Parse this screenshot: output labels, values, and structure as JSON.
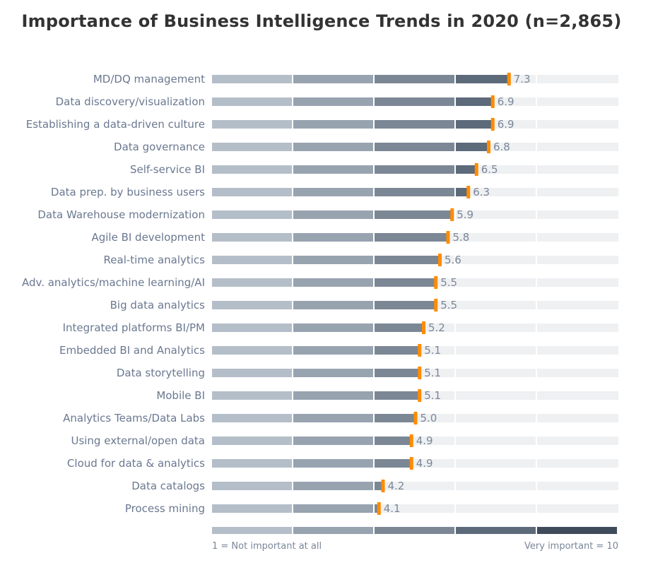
{
  "chart_data": {
    "type": "bar",
    "orientation": "horizontal",
    "title": "Importance of Business Intelligence Trends in 2020 (n=2,865)",
    "categories": [
      "MD/DQ management",
      "Data discovery/visualization",
      "Establishing a data-driven culture",
      "Data governance",
      "Self-service BI",
      "Data prep. by business users",
      "Data Warehouse modernization",
      "Agile BI development",
      "Real-time analytics",
      "Adv. analytics/machine learning/AI",
      "Big data analytics",
      "Integrated platforms BI/PM",
      "Embedded BI and Analytics",
      "Data storytelling",
      "Mobile BI",
      "Analytics Teams/Data Labs",
      "Using external/open data",
      "Cloud for data & analytics",
      "Data catalogs",
      "Process mining"
    ],
    "values": [
      7.3,
      6.9,
      6.9,
      6.8,
      6.5,
      6.3,
      5.9,
      5.8,
      5.6,
      5.5,
      5.5,
      5.2,
      5.1,
      5.1,
      5.1,
      5.0,
      4.9,
      4.9,
      4.2,
      4.1
    ],
    "value_labels": [
      "7.3",
      "6.9",
      "6.9",
      "6.8",
      "6.5",
      "6.3",
      "5.9",
      "5.8",
      "5.6",
      "5.5",
      "5.5",
      "5.2",
      "5.1",
      "5.1",
      "5.1",
      "5.0",
      "4.9",
      "4.9",
      "4.2",
      "4.1"
    ],
    "xlim": [
      0,
      10
    ],
    "grid": false,
    "scale_left_label": "1 = Not important at all",
    "scale_right_label": "Very important = 10",
    "colors": {
      "segments": [
        "#b4bec9",
        "#98a3b0",
        "#7b8794",
        "#5c6a7a",
        "#3f4b5a"
      ],
      "remainder": "#eef0f2",
      "marker": "#ff8c00"
    }
  }
}
